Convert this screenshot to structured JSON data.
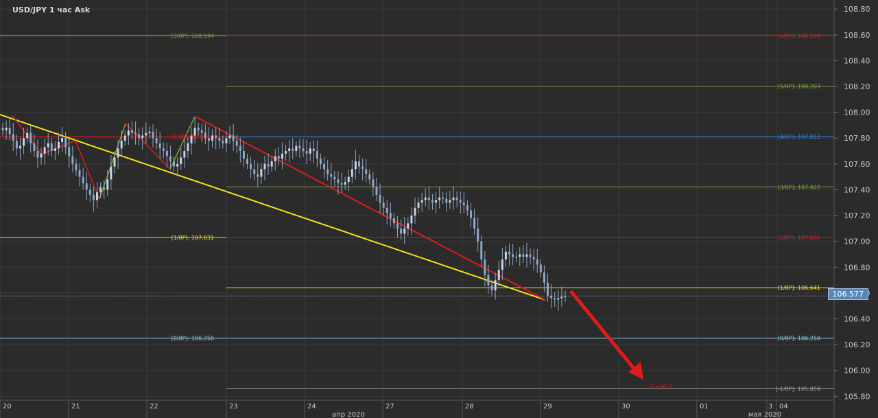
{
  "title": "USD/JPY  1 час Ask",
  "colors": {
    "background": "#2b2b2b",
    "grid": "#3a3a3a",
    "axis_text": "#c9c9c9",
    "candle": "#8fa6c8",
    "red": "#e01b1b",
    "green": "#7aa23a",
    "yellow": "#f4e21a",
    "blue": "#2f7fd8",
    "lightblue": "#8ec9e6",
    "gray": "#a0a0a0"
  },
  "price_axis": {
    "ticks": [
      "108.80",
      "108.60",
      "108.40",
      "108.20",
      "108.00",
      "107.80",
      "107.60",
      "107.40",
      "107.20",
      "107.00",
      "106.80",
      "106.60",
      "106.40",
      "106.20",
      "106.00",
      "105.80"
    ],
    "range": [
      105.77,
      108.87
    ]
  },
  "current_price": "106.577",
  "time_axis": {
    "day_labels": [
      "20",
      "21",
      "22",
      "23",
      "24",
      "27",
      "28",
      "29",
      "30",
      "01",
      "3",
      "04"
    ],
    "month_labels": [
      "апр 2020",
      "мая 2020"
    ]
  },
  "chart_data": {
    "type": "candlestick",
    "title": "USD/JPY  1 час Ask",
    "murrey_levels": [
      {
        "label": "[3/8P]: 108,594",
        "value": 108.594,
        "segment": "left",
        "color": "green"
      },
      {
        "label": "[2/8P]: 107,812",
        "value": 107.812,
        "segment": "left",
        "color": "red"
      },
      {
        "label": "[1/8P]: 107,031",
        "value": 107.031,
        "segment": "left",
        "color": "yellow"
      },
      {
        "label": "[0/8P]: 106,250",
        "value": 106.25,
        "segment": "left",
        "color": "lightblue"
      },
      {
        "label": "[6/8P]: 108,594",
        "value": 108.594,
        "segment": "right",
        "color": "red"
      },
      {
        "label": "[5/8P]: 108,203",
        "value": 108.203,
        "segment": "right",
        "color": "green"
      },
      {
        "label": "[4/8P]: 107,812",
        "value": 107.812,
        "segment": "right",
        "color": "blue"
      },
      {
        "label": "[3/8P]: 107,422",
        "value": 107.422,
        "segment": "right",
        "color": "green"
      },
      {
        "label": "[2/8P]: 107,031",
        "value": 107.031,
        "segment": "right",
        "color": "red"
      },
      {
        "label": "[1/8P]: 106,641",
        "value": 106.641,
        "segment": "right",
        "color": "yellow"
      },
      {
        "label": "[0/8P]: 106,250",
        "value": 106.25,
        "segment": "right",
        "color": "lightblue"
      },
      {
        "label": "[-1/8P]: 105,859",
        "value": 105.859,
        "segment": "right",
        "color": "gray"
      }
    ],
    "annotation": "-2/+00-2",
    "closes": [
      107.86,
      107.88,
      107.83,
      107.78,
      107.72,
      107.74,
      107.8,
      107.84,
      107.76,
      107.7,
      107.65,
      107.68,
      107.73,
      107.76,
      107.7,
      107.72,
      107.77,
      107.8,
      107.73,
      107.66,
      107.6,
      107.55,
      107.5,
      107.45,
      107.4,
      107.36,
      107.32,
      107.38,
      107.42,
      107.4,
      107.48,
      107.58,
      107.65,
      107.72,
      107.78,
      107.82,
      107.86,
      107.84,
      107.83,
      107.8,
      107.82,
      107.84,
      107.85,
      107.8,
      107.76,
      107.72,
      107.7,
      107.66,
      107.62,
      107.58,
      107.6,
      107.65,
      107.7,
      107.76,
      107.82,
      107.88,
      107.86,
      107.84,
      107.8,
      107.78,
      107.82,
      107.8,
      107.78,
      107.76,
      107.8,
      107.82,
      107.78,
      107.74,
      107.7,
      107.64,
      107.6,
      107.56,
      107.52,
      107.5,
      107.56,
      107.6,
      107.58,
      107.62,
      107.66,
      107.64,
      107.68,
      107.7,
      107.72,
      107.7,
      107.74,
      107.72,
      107.7,
      107.68,
      107.72,
      107.7,
      107.64,
      107.6,
      107.56,
      107.52,
      107.5,
      107.48,
      107.45,
      107.44,
      107.46,
      107.5,
      107.56,
      107.62,
      107.58,
      107.56,
      107.52,
      107.48,
      107.42,
      107.36,
      107.3,
      107.26,
      107.22,
      107.18,
      107.14,
      107.1,
      107.06,
      107.1,
      107.14,
      107.2,
      107.26,
      107.3,
      107.32,
      107.34,
      107.32,
      107.3,
      107.32,
      107.34,
      107.33,
      107.3,
      107.32,
      107.34,
      107.32,
      107.3,
      107.28,
      107.24,
      107.18,
      107.1,
      107.0,
      106.86,
      106.74,
      106.66,
      106.62,
      106.7,
      106.78,
      106.86,
      106.92,
      106.9,
      106.88,
      106.88,
      106.9,
      106.88,
      106.9,
      106.88,
      106.86,
      106.82,
      106.76,
      106.68,
      106.58,
      106.56,
      106.55,
      106.56,
      106.57,
      106.577
    ]
  }
}
